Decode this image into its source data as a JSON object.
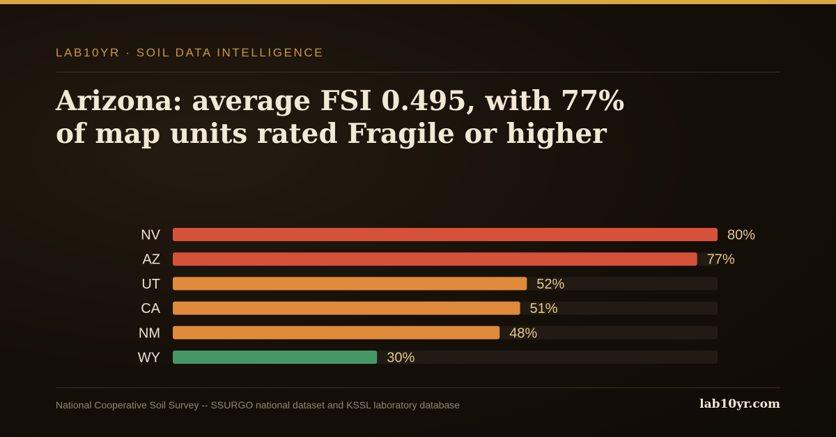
{
  "header": {
    "eyebrow": "LAB10YR · SOIL DATA INTELLIGENCE",
    "title": "Arizona: average FSI 0.495, with 77% of map units rated Fragile or higher"
  },
  "chart_data": {
    "type": "bar",
    "orientation": "horizontal",
    "categories": [
      "NV",
      "AZ",
      "UT",
      "CA",
      "NM",
      "WY"
    ],
    "values": [
      80,
      77,
      52,
      51,
      48,
      30
    ],
    "value_labels": [
      "80%",
      "77%",
      "52%",
      "51%",
      "48%",
      "30%"
    ],
    "bar_colors": [
      "#d6513a",
      "#d6513a",
      "#e08a3c",
      "#e08a3c",
      "#e08a3c",
      "#459866"
    ],
    "xlim": [
      0,
      80
    ],
    "grid": false,
    "legend": "none"
  },
  "footer": {
    "source": "National Cooperative Soil Survey -- SSURGO national dataset and KSSL laboratory database",
    "brand": "lab10yr.com"
  },
  "colors": {
    "accent": "#d9a640",
    "background": "#150f09",
    "value_label": "#e6c98a",
    "track": "#221b14"
  }
}
